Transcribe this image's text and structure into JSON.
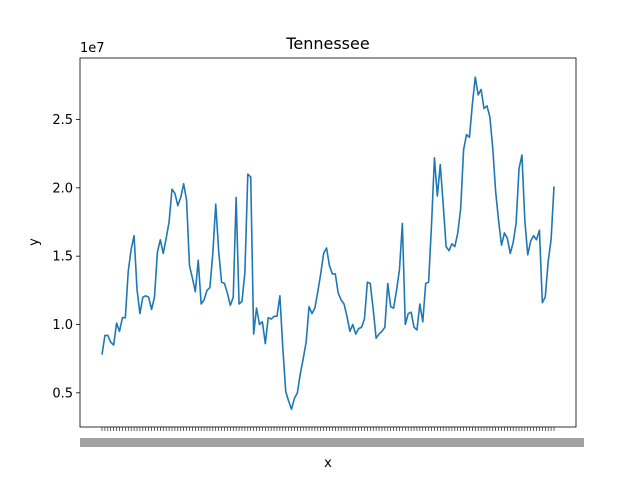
{
  "chart_data": {
    "type": "line",
    "title": "Tennessee",
    "xlabel": "x",
    "ylabel": "y",
    "offset_label": "1e7",
    "ylim": [
      2500000,
      29500000
    ],
    "yticks": [
      5000000,
      10000000,
      15000000,
      20000000,
      25000000
    ],
    "ytick_labels": [
      "0.5",
      "1.0",
      "1.5",
      "2.0",
      "2.5"
    ],
    "x_tick_labels_unreadable": true,
    "grid": false,
    "line_color": "#1f77b4",
    "series": [
      {
        "values": [
          7800000,
          9200000,
          9200000,
          8700000,
          8500000,
          10100000,
          9500000,
          10500000,
          10500000,
          13900000,
          15500000,
          16500000,
          12600000,
          10800000,
          12000000,
          12100000,
          12000000,
          11100000,
          12000000,
          15300000,
          16200000,
          15200000,
          16300000,
          17500000,
          19900000,
          19600000,
          18700000,
          19300000,
          20300000,
          19100000,
          14300000,
          13400000,
          12400000,
          14700000,
          11500000,
          11800000,
          12500000,
          12700000,
          15200000,
          18800000,
          15400000,
          13100000,
          13000000,
          12300000,
          11400000,
          12000000,
          19300000,
          11500000,
          11700000,
          13800000,
          21000000,
          20800000,
          9300000,
          11200000,
          10000000,
          10200000,
          8600000,
          10500000,
          10400000,
          10600000,
          10600000,
          12100000,
          8300000,
          5100000,
          4400000,
          3800000,
          4600000,
          5000000,
          6400000,
          7500000,
          8700000,
          11300000,
          10800000,
          11200000,
          12400000,
          13700000,
          15200000,
          15600000,
          14300000,
          13700000,
          13700000,
          12300000,
          11800000,
          11500000,
          10600000,
          9500000,
          10000000,
          9300000,
          9700000,
          9800000,
          10400000,
          13100000,
          13000000,
          11100000,
          9000000,
          9300000,
          9500000,
          9800000,
          13000000,
          11300000,
          11200000,
          12500000,
          14000000,
          17400000,
          10000000,
          10800000,
          10900000,
          9800000,
          9600000,
          11500000,
          10200000,
          13000000,
          13100000,
          17300000,
          22200000,
          19400000,
          21700000,
          18800000,
          15700000,
          15400000,
          15900000,
          15700000,
          16700000,
          18500000,
          22800000,
          23900000,
          23700000,
          26100000,
          28100000,
          26800000,
          27200000,
          25800000,
          26000000,
          25200000,
          22900000,
          19700000,
          17600000,
          15800000,
          16700000,
          16300000,
          15200000,
          16000000,
          17400000,
          21400000,
          22400000,
          17600000,
          15100000,
          16100000,
          16500000,
          16200000,
          16900000,
          11600000,
          12000000,
          14600000,
          16200000,
          20100000
        ]
      }
    ]
  }
}
